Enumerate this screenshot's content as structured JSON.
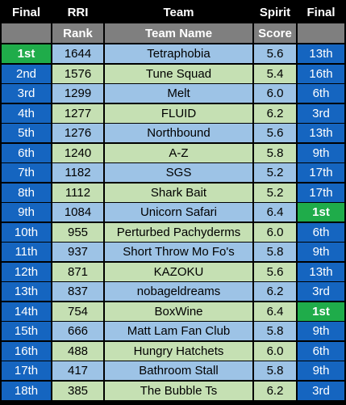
{
  "header": {
    "col_final_left": "Final",
    "col_rri": "RRI",
    "col_team": "Team",
    "col_spirit": "Spirit",
    "col_final_right": "Final"
  },
  "subheader": {
    "rri": "Rank",
    "team": "Team Name",
    "spirit": "Score"
  },
  "colors": {
    "edge_blue": "#1565c0",
    "winner_green": "#1fac4a",
    "row_blue": "#9dc3e6",
    "row_green": "#c5e0b3",
    "subheader_gray": "#7f7f7f"
  },
  "rows": [
    {
      "final": "1st",
      "rri": "1644",
      "team": "Tetraphobia",
      "spirit": "5.6",
      "spirit_final": "13th"
    },
    {
      "final": "2nd",
      "rri": "1576",
      "team": "Tune Squad",
      "spirit": "5.4",
      "spirit_final": "16th"
    },
    {
      "final": "3rd",
      "rri": "1299",
      "team": "Melt",
      "spirit": "6.0",
      "spirit_final": "6th"
    },
    {
      "final": "4th",
      "rri": "1277",
      "team": "FLUID",
      "spirit": "6.2",
      "spirit_final": "3rd"
    },
    {
      "final": "5th",
      "rri": "1276",
      "team": "Northbound",
      "spirit": "5.6",
      "spirit_final": "13th"
    },
    {
      "final": "6th",
      "rri": "1240",
      "team": "A-Z",
      "spirit": "5.8",
      "spirit_final": "9th"
    },
    {
      "final": "7th",
      "rri": "1182",
      "team": "SGS",
      "spirit": "5.2",
      "spirit_final": "17th"
    },
    {
      "final": "8th",
      "rri": "1112",
      "team": "Shark Bait",
      "spirit": "5.2",
      "spirit_final": "17th"
    },
    {
      "final": "9th",
      "rri": "1084",
      "team": "Unicorn Safari",
      "spirit": "6.4",
      "spirit_final": "1st"
    },
    {
      "final": "10th",
      "rri": "955",
      "team": "Perturbed Pachyderms",
      "spirit": "6.0",
      "spirit_final": "6th"
    },
    {
      "final": "11th",
      "rri": "937",
      "team": "Short Throw Mo Fo's",
      "spirit": "5.8",
      "spirit_final": "9th"
    },
    {
      "final": "12th",
      "rri": "871",
      "team": "KAZOKU",
      "spirit": "5.6",
      "spirit_final": "13th"
    },
    {
      "final": "13th",
      "rri": "837",
      "team": "nobageldreams",
      "spirit": "6.2",
      "spirit_final": "3rd"
    },
    {
      "final": "14th",
      "rri": "754",
      "team": "BoxWine",
      "spirit": "6.4",
      "spirit_final": "1st"
    },
    {
      "final": "15th",
      "rri": "666",
      "team": "Matt Lam Fan Club",
      "spirit": "5.8",
      "spirit_final": "9th"
    },
    {
      "final": "16th",
      "rri": "488",
      "team": "Hungry Hatchets",
      "spirit": "6.0",
      "spirit_final": "6th"
    },
    {
      "final": "17th",
      "rri": "417",
      "team": "Bathroom Stall",
      "spirit": "5.8",
      "spirit_final": "9th"
    },
    {
      "final": "18th",
      "rri": "385",
      "team": "The Bubble Ts",
      "spirit": "6.2",
      "spirit_final": "3rd"
    }
  ]
}
